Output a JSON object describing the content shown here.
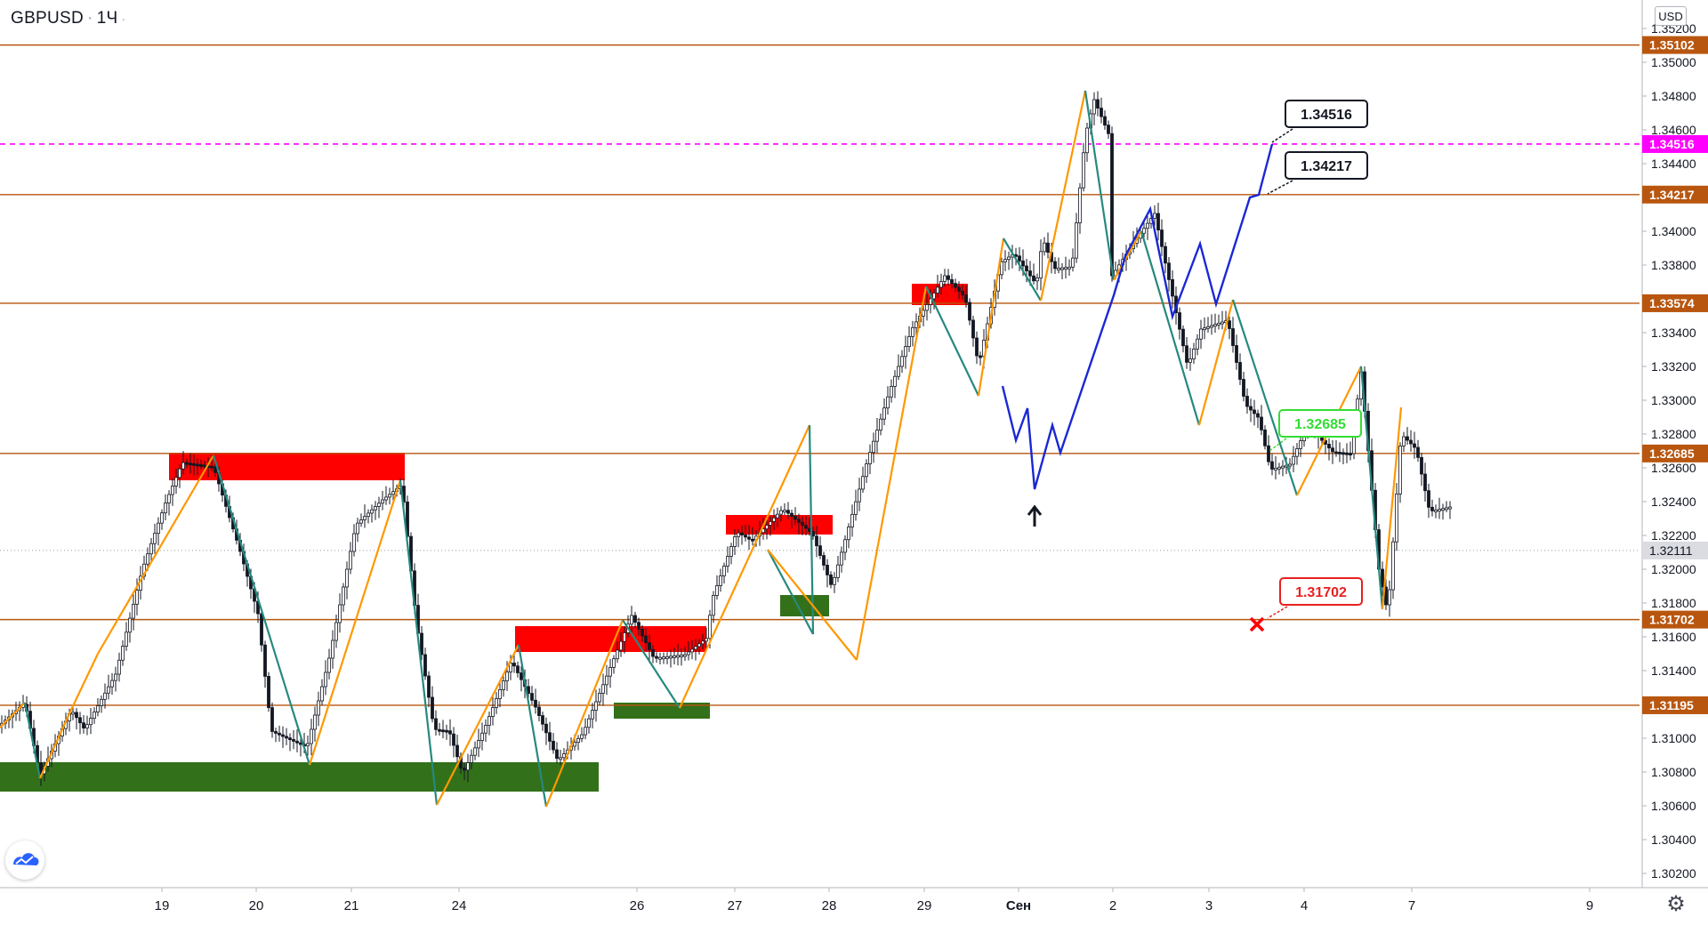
{
  "header": {
    "symbol": "GBPUSD",
    "interval": "1Ч"
  },
  "price_axis": {
    "currency": "USD",
    "ticks": [
      "1.35200",
      "1.35000",
      "1.34800",
      "1.34600",
      "1.34400",
      "1.34000",
      "1.33800",
      "1.33400",
      "1.33200",
      "1.33000",
      "1.32800",
      "1.32600",
      "1.32400",
      "1.32200",
      "1.32000",
      "1.31800",
      "1.31600",
      "1.31400",
      "1.31000",
      "1.30800",
      "1.30600",
      "1.30400",
      "1.30200"
    ],
    "last_price": "1.32111"
  },
  "time_axis": {
    "labels": [
      "19",
      "20",
      "21",
      "24",
      "26",
      "27",
      "28",
      "29",
      "Сен",
      "2",
      "3",
      "4",
      "7",
      "9"
    ]
  },
  "levels": [
    {
      "price": "1.35102",
      "color": "#b8560f",
      "style": "solid"
    },
    {
      "price": "1.34516",
      "color": "#ff00ff",
      "style": "dashed"
    },
    {
      "price": "1.34217",
      "color": "#b8560f",
      "style": "solid"
    },
    {
      "price": "1.33574",
      "color": "#b8560f",
      "style": "solid"
    },
    {
      "price": "1.32685",
      "color": "#b8560f",
      "style": "solid"
    },
    {
      "price": "1.31702",
      "color": "#b8560f",
      "style": "solid"
    },
    {
      "price": "1.31195",
      "color": "#b8560f",
      "style": "solid"
    }
  ],
  "callouts": [
    {
      "text": "1.34516",
      "color": "#131722",
      "bg": "#ffffff"
    },
    {
      "text": "1.34217",
      "color": "#131722",
      "bg": "#ffffff"
    },
    {
      "text": "1.32685",
      "color": "#33dd33",
      "bg": "#ffffff"
    },
    {
      "text": "1.31702",
      "color": "#e82020",
      "bg": "#ffffff"
    }
  ],
  "colors": {
    "accent_orange": "#ff9800",
    "teal": "#26897f",
    "forecast_blue": "#1a28d4",
    "resistance_red": "#ff0000",
    "support_green": "#33701a",
    "candle": "#131722"
  },
  "icons": {
    "settings": "gear-icon",
    "logo": "tradingview-logo-icon",
    "arrow": "up-arrow-icon",
    "cross": "cross-icon"
  }
}
